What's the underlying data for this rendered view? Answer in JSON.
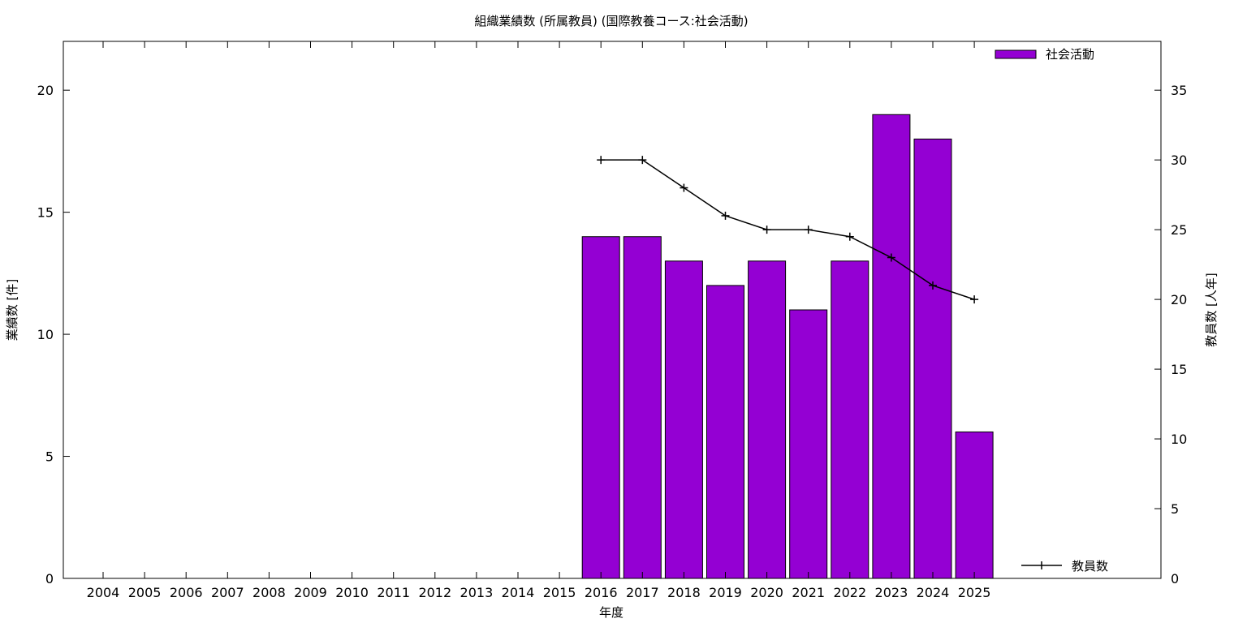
{
  "chart_data": {
    "type": "bar",
    "title": "組織業績数 (所属教員) (国際教養コース:社会活動)",
    "xlabel": "年度",
    "ylabel": "業績数 [件]",
    "y2label": "教員数 [人年]",
    "categories": [
      "2004",
      "2005",
      "2006",
      "2007",
      "2008",
      "2009",
      "2010",
      "2011",
      "2012",
      "2013",
      "2014",
      "2015",
      "2016",
      "2017",
      "2018",
      "2019",
      "2020",
      "2021",
      "2022",
      "2023",
      "2024",
      "2025"
    ],
    "ylim": [
      0,
      22
    ],
    "y2lim": [
      0,
      38.5
    ],
    "yticks": [
      0,
      5,
      10,
      15,
      20
    ],
    "y2ticks": [
      0,
      5,
      10,
      15,
      20,
      25,
      30,
      35
    ],
    "grid": false,
    "series": [
      {
        "name": "社会活動",
        "kind": "bar",
        "axis": "left",
        "color": "#9400d3",
        "values": [
          null,
          null,
          null,
          null,
          null,
          null,
          null,
          null,
          null,
          null,
          null,
          null,
          14,
          14,
          13,
          12,
          13,
          11,
          13,
          19,
          18,
          6
        ]
      },
      {
        "name": "教員数",
        "kind": "line",
        "axis": "right",
        "color": "#000000",
        "values": [
          null,
          null,
          null,
          null,
          null,
          null,
          null,
          null,
          null,
          null,
          null,
          null,
          30,
          30,
          28,
          26,
          25,
          25,
          24.5,
          23,
          21,
          20
        ]
      }
    ],
    "legend": [
      {
        "label": "社会活動",
        "placement": "top-right"
      },
      {
        "label": "教員数",
        "placement": "bottom-right"
      }
    ]
  }
}
